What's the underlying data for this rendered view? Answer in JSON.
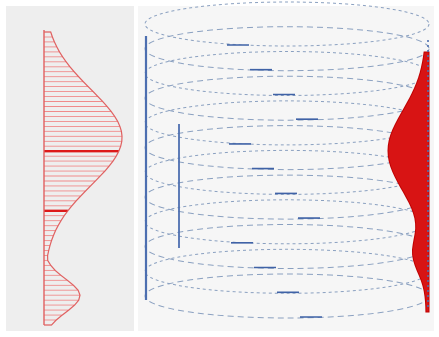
{
  "figure": {
    "left_panel": {
      "name": "profile-histogram",
      "bar_count": 60,
      "emphasized_bars": [
        24,
        36
      ],
      "colors": {
        "bars": "#f08a8a",
        "emphasis": "#dd1a1a",
        "outline": "#e06060",
        "background": "#eeeeee"
      }
    },
    "right_panel": {
      "name": "cylinder-diagram",
      "ring_count": 12,
      "colors": {
        "rings": "#8aa0c0",
        "dash_accent": "#3f62a6",
        "axis": "#4d6fb0",
        "profile_fill": "#d81414",
        "background": "#f6f6f6"
      }
    }
  }
}
